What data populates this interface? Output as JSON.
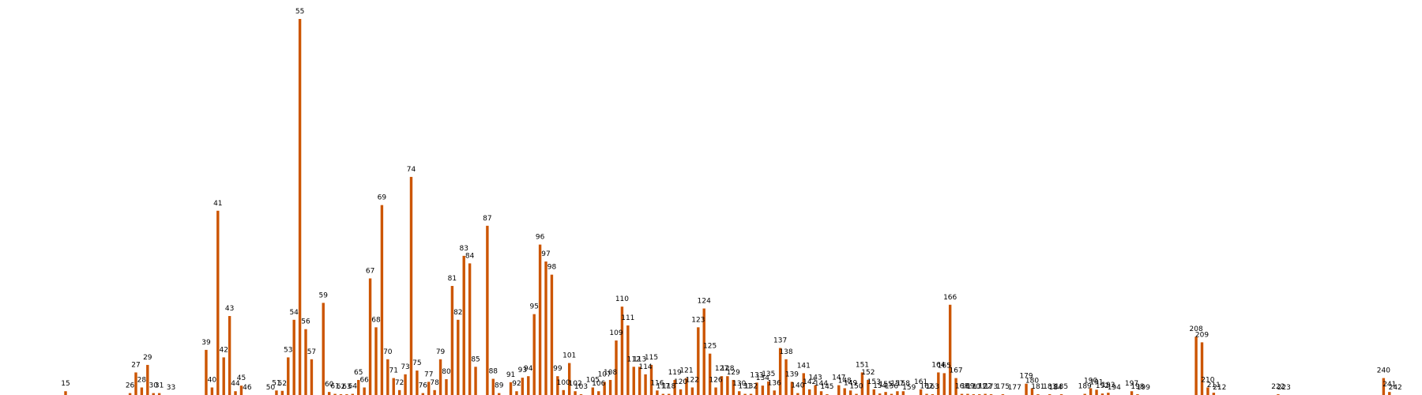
{
  "chart_data": {
    "type": "bar",
    "title": "",
    "xlabel": "",
    "ylabel": "",
    "bar_color": "#cc5500",
    "ylim": [
      0,
      100
    ],
    "xlim": [
      0,
      242
    ],
    "grid": false,
    "axes_visible": false,
    "bars": [
      {
        "x": 15,
        "value": 1
      },
      {
        "x": 26,
        "value": 0.5
      },
      {
        "x": 27,
        "value": 6
      },
      {
        "x": 28,
        "value": 2
      },
      {
        "x": 29,
        "value": 8
      },
      {
        "x": 30,
        "value": 0.5
      },
      {
        "x": 31,
        "value": 0.5
      },
      {
        "x": 33,
        "value": 0
      },
      {
        "x": 39,
        "value": 12
      },
      {
        "x": 40,
        "value": 2
      },
      {
        "x": 41,
        "value": 49
      },
      {
        "x": 42,
        "value": 10
      },
      {
        "x": 43,
        "value": 21
      },
      {
        "x": 44,
        "value": 1
      },
      {
        "x": 45,
        "value": 2.5
      },
      {
        "x": 46,
        "value": 0
      },
      {
        "x": 50,
        "value": 0
      },
      {
        "x": 51,
        "value": 1.2
      },
      {
        "x": 52,
        "value": 1.1
      },
      {
        "x": 53,
        "value": 10
      },
      {
        "x": 54,
        "value": 20
      },
      {
        "x": 55,
        "value": 100
      },
      {
        "x": 56,
        "value": 17.5
      },
      {
        "x": 57,
        "value": 9.5
      },
      {
        "x": 59,
        "value": 24.5
      },
      {
        "x": 60,
        "value": 0.8
      },
      {
        "x": 61,
        "value": 0.3
      },
      {
        "x": 62,
        "value": 0.2
      },
      {
        "x": 63,
        "value": 0.2
      },
      {
        "x": 64,
        "value": 0.3
      },
      {
        "x": 65,
        "value": 4
      },
      {
        "x": 66,
        "value": 2
      },
      {
        "x": 67,
        "value": 31
      },
      {
        "x": 68,
        "value": 18
      },
      {
        "x": 69,
        "value": 50.5
      },
      {
        "x": 70,
        "value": 9.5
      },
      {
        "x": 71,
        "value": 4.5
      },
      {
        "x": 72,
        "value": 1.3
      },
      {
        "x": 73,
        "value": 5.5
      },
      {
        "x": 74,
        "value": 58
      },
      {
        "x": 75,
        "value": 6.5
      },
      {
        "x": 76,
        "value": 0.5
      },
      {
        "x": 77,
        "value": 3.5
      },
      {
        "x": 78,
        "value": 1.3
      },
      {
        "x": 79,
        "value": 9.5
      },
      {
        "x": 80,
        "value": 4.2
      },
      {
        "x": 81,
        "value": 29
      },
      {
        "x": 82,
        "value": 20
      },
      {
        "x": 83,
        "value": 37
      },
      {
        "x": 84,
        "value": 35
      },
      {
        "x": 85,
        "value": 7.5
      },
      {
        "x": 87,
        "value": 45
      },
      {
        "x": 88,
        "value": 4.3
      },
      {
        "x": 89,
        "value": 0.5
      },
      {
        "x": 91,
        "value": 3.4
      },
      {
        "x": 92,
        "value": 1
      },
      {
        "x": 93,
        "value": 4.6
      },
      {
        "x": 94,
        "value": 5
      },
      {
        "x": 95,
        "value": 21.5
      },
      {
        "x": 96,
        "value": 40
      },
      {
        "x": 97,
        "value": 35.5
      },
      {
        "x": 98,
        "value": 32
      },
      {
        "x": 99,
        "value": 5
      },
      {
        "x": 100,
        "value": 1.3
      },
      {
        "x": 101,
        "value": 8.5
      },
      {
        "x": 102,
        "value": 1
      },
      {
        "x": 103,
        "value": 0.2
      },
      {
        "x": 105,
        "value": 2
      },
      {
        "x": 106,
        "value": 1
      },
      {
        "x": 107,
        "value": 3.5
      },
      {
        "x": 108,
        "value": 4
      },
      {
        "x": 109,
        "value": 14.5
      },
      {
        "x": 110,
        "value": 23.5
      },
      {
        "x": 111,
        "value": 18.5
      },
      {
        "x": 112,
        "value": 7.5
      },
      {
        "x": 113,
        "value": 7.5
      },
      {
        "x": 114,
        "value": 5.5
      },
      {
        "x": 115,
        "value": 8
      },
      {
        "x": 116,
        "value": 1.2
      },
      {
        "x": 117,
        "value": 0.3
      },
      {
        "x": 118,
        "value": 0.3
      },
      {
        "x": 119,
        "value": 4
      },
      {
        "x": 120,
        "value": 1.5
      },
      {
        "x": 121,
        "value": 4.5
      },
      {
        "x": 122,
        "value": 2
      },
      {
        "x": 123,
        "value": 18
      },
      {
        "x": 124,
        "value": 23
      },
      {
        "x": 125,
        "value": 11
      },
      {
        "x": 126,
        "value": 2
      },
      {
        "x": 127,
        "value": 5
      },
      {
        "x": 128,
        "value": 5
      },
      {
        "x": 129,
        "value": 4
      },
      {
        "x": 130,
        "value": 1
      },
      {
        "x": 131,
        "value": 0.3
      },
      {
        "x": 132,
        "value": 0.3
      },
      {
        "x": 133,
        "value": 3.3
      },
      {
        "x": 134,
        "value": 2.5
      },
      {
        "x": 135,
        "value": 3.6
      },
      {
        "x": 136,
        "value": 1.2
      },
      {
        "x": 137,
        "value": 12.5
      },
      {
        "x": 138,
        "value": 9.5
      },
      {
        "x": 139,
        "value": 3.5
      },
      {
        "x": 140,
        "value": 0.5
      },
      {
        "x": 141,
        "value": 5.8
      },
      {
        "x": 142,
        "value": 1.5
      },
      {
        "x": 143,
        "value": 2.6
      },
      {
        "x": 144,
        "value": 1
      },
      {
        "x": 145,
        "value": 0.2
      },
      {
        "x": 147,
        "value": 2.6
      },
      {
        "x": 148,
        "value": 1.8
      },
      {
        "x": 149,
        "value": 1.2
      },
      {
        "x": 150,
        "value": 0.3
      },
      {
        "x": 151,
        "value": 6
      },
      {
        "x": 152,
        "value": 4
      },
      {
        "x": 153,
        "value": 1.5
      },
      {
        "x": 154,
        "value": 0.4
      },
      {
        "x": 155,
        "value": 0.8
      },
      {
        "x": 156,
        "value": 0.3
      },
      {
        "x": 157,
        "value": 1
      },
      {
        "x": 158,
        "value": 1
      },
      {
        "x": 159,
        "value": 0
      },
      {
        "x": 161,
        "value": 1.5
      },
      {
        "x": 162,
        "value": 0.3
      },
      {
        "x": 163,
        "value": 0.2
      },
      {
        "x": 164,
        "value": 6
      },
      {
        "x": 165,
        "value": 5.8
      },
      {
        "x": 166,
        "value": 24
      },
      {
        "x": 167,
        "value": 4.5
      },
      {
        "x": 168,
        "value": 0.3
      },
      {
        "x": 169,
        "value": 0.3
      },
      {
        "x": 170,
        "value": 0.2
      },
      {
        "x": 171,
        "value": 0.2
      },
      {
        "x": 172,
        "value": 0.3
      },
      {
        "x": 173,
        "value": 0.2
      },
      {
        "x": 175,
        "value": 0.2
      },
      {
        "x": 177,
        "value": 0
      },
      {
        "x": 179,
        "value": 3
      },
      {
        "x": 180,
        "value": 1.8
      },
      {
        "x": 181,
        "value": 0.2
      },
      {
        "x": 183,
        "value": 0.2
      },
      {
        "x": 184,
        "value": 0
      },
      {
        "x": 185,
        "value": 0.2
      },
      {
        "x": 189,
        "value": 0.3
      },
      {
        "x": 190,
        "value": 1.8
      },
      {
        "x": 191,
        "value": 1.4
      },
      {
        "x": 192,
        "value": 0.4
      },
      {
        "x": 193,
        "value": 0.6
      },
      {
        "x": 194,
        "value": 0
      },
      {
        "x": 197,
        "value": 1
      },
      {
        "x": 198,
        "value": 0.2
      },
      {
        "x": 199,
        "value": 0
      },
      {
        "x": 208,
        "value": 15.5
      },
      {
        "x": 209,
        "value": 14
      },
      {
        "x": 210,
        "value": 2
      },
      {
        "x": 211,
        "value": 0.6
      },
      {
        "x": 212,
        "value": 0
      },
      {
        "x": 222,
        "value": 0.2
      },
      {
        "x": 223,
        "value": 0
      },
      {
        "x": 240,
        "value": 4.5
      },
      {
        "x": 241,
        "value": 0.8
      },
      {
        "x": 242,
        "value": 0
      }
    ]
  }
}
